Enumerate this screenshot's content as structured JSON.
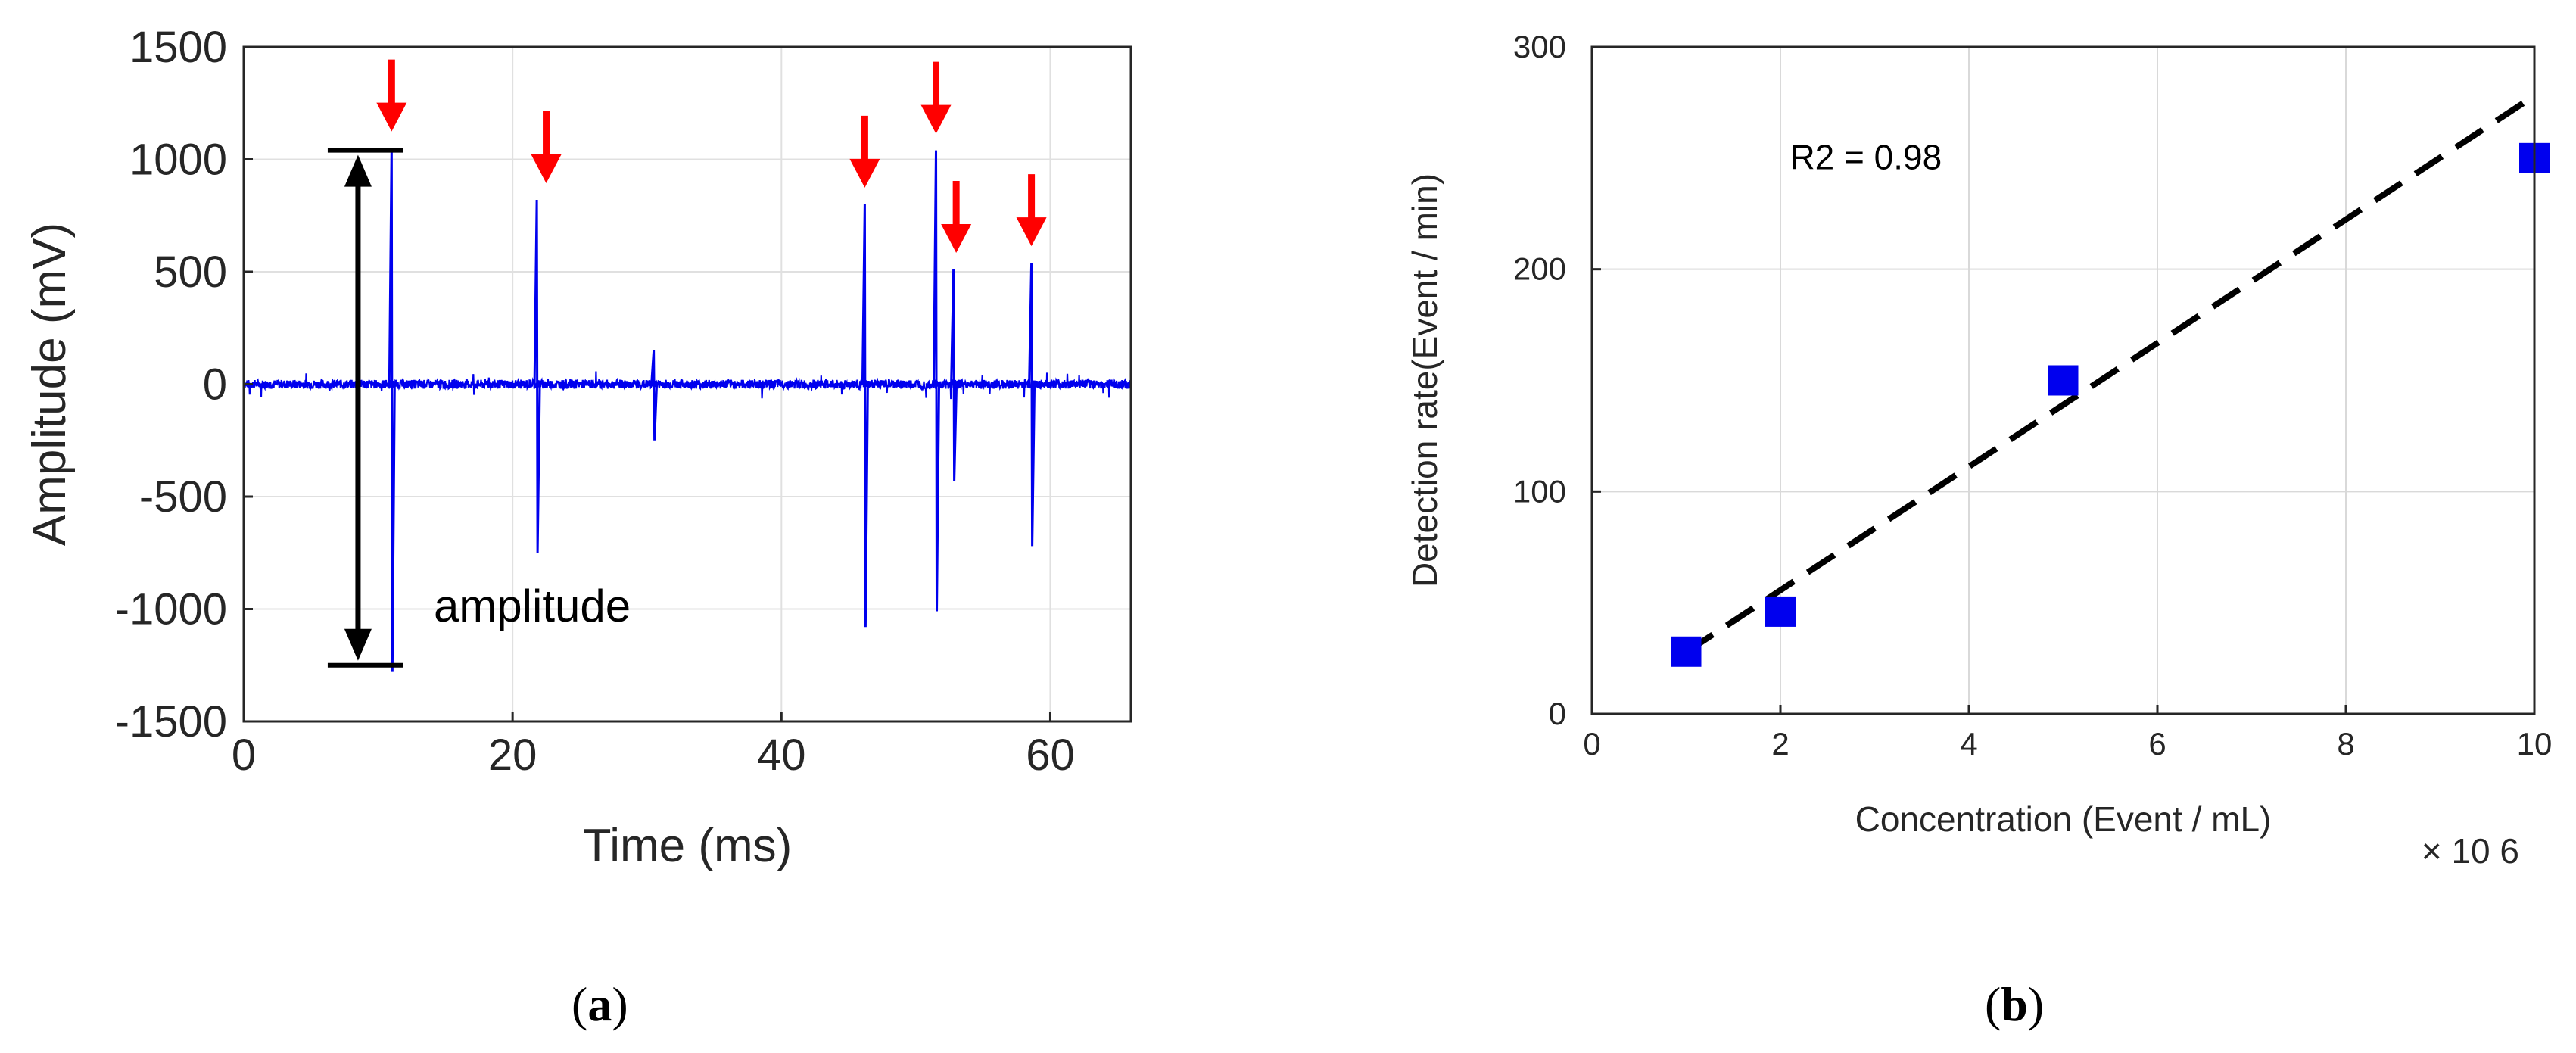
{
  "chart_data": [
    {
      "panel": "a",
      "type": "line",
      "title": "",
      "xlabel": "Time (ms)",
      "ylabel": "Amplitude (mV)",
      "xlim": [
        0,
        66
      ],
      "ylim": [
        -1500,
        1500
      ],
      "xticks": [
        0,
        20,
        40,
        60
      ],
      "yticks": [
        -1500,
        -1000,
        -500,
        0,
        500,
        1000,
        1500
      ],
      "grid": true,
      "series": [
        {
          "name": "signal",
          "color": "#0000ee",
          "baseline_noise": 20,
          "spikes": [
            {
              "t": 11.0,
              "max": 1050,
              "min": -1280
            },
            {
              "t": 21.8,
              "max": 820,
              "min": -750
            },
            {
              "t": 30.5,
              "max": 150,
              "min": -250
            },
            {
              "t": 46.2,
              "max": 800,
              "min": -1080
            },
            {
              "t": 51.5,
              "max": 1040,
              "min": -1010
            },
            {
              "t": 52.8,
              "max": 510,
              "min": -430
            },
            {
              "t": 58.6,
              "max": 540,
              "min": -720
            }
          ]
        }
      ],
      "arrows_at_ms": [
        11.0,
        22.5,
        46.2,
        51.5,
        53.0,
        58.6
      ],
      "arrow_color": "#ff0000",
      "annotation": {
        "text": "amplitude",
        "from": 1040,
        "to": -1250,
        "at_ms": 8.5
      }
    },
    {
      "panel": "b",
      "type": "scatter",
      "title": "",
      "xlabel": "Concentration (Event / mL)",
      "ylabel": "Detection rate(Event / min)",
      "x_multiplier": "× 10 6",
      "xlim": [
        0,
        10
      ],
      "ylim": [
        0,
        300
      ],
      "xticks": [
        0,
        2,
        4,
        6,
        8,
        10
      ],
      "yticks": [
        0,
        100,
        200,
        300
      ],
      "grid": true,
      "series": [
        {
          "name": "measured",
          "color": "#0000ee",
          "x": [
            1,
            2,
            5,
            10
          ],
          "y": [
            28,
            46,
            150,
            250
          ]
        }
      ],
      "fit": {
        "slope": 27.8,
        "intercept": 0,
        "x_range": [
          1,
          10
        ],
        "style": "dashed",
        "color": "#000000"
      },
      "annotation": "R2 = 0.98"
    }
  ],
  "labels": {
    "a": "a",
    "b": "b"
  }
}
